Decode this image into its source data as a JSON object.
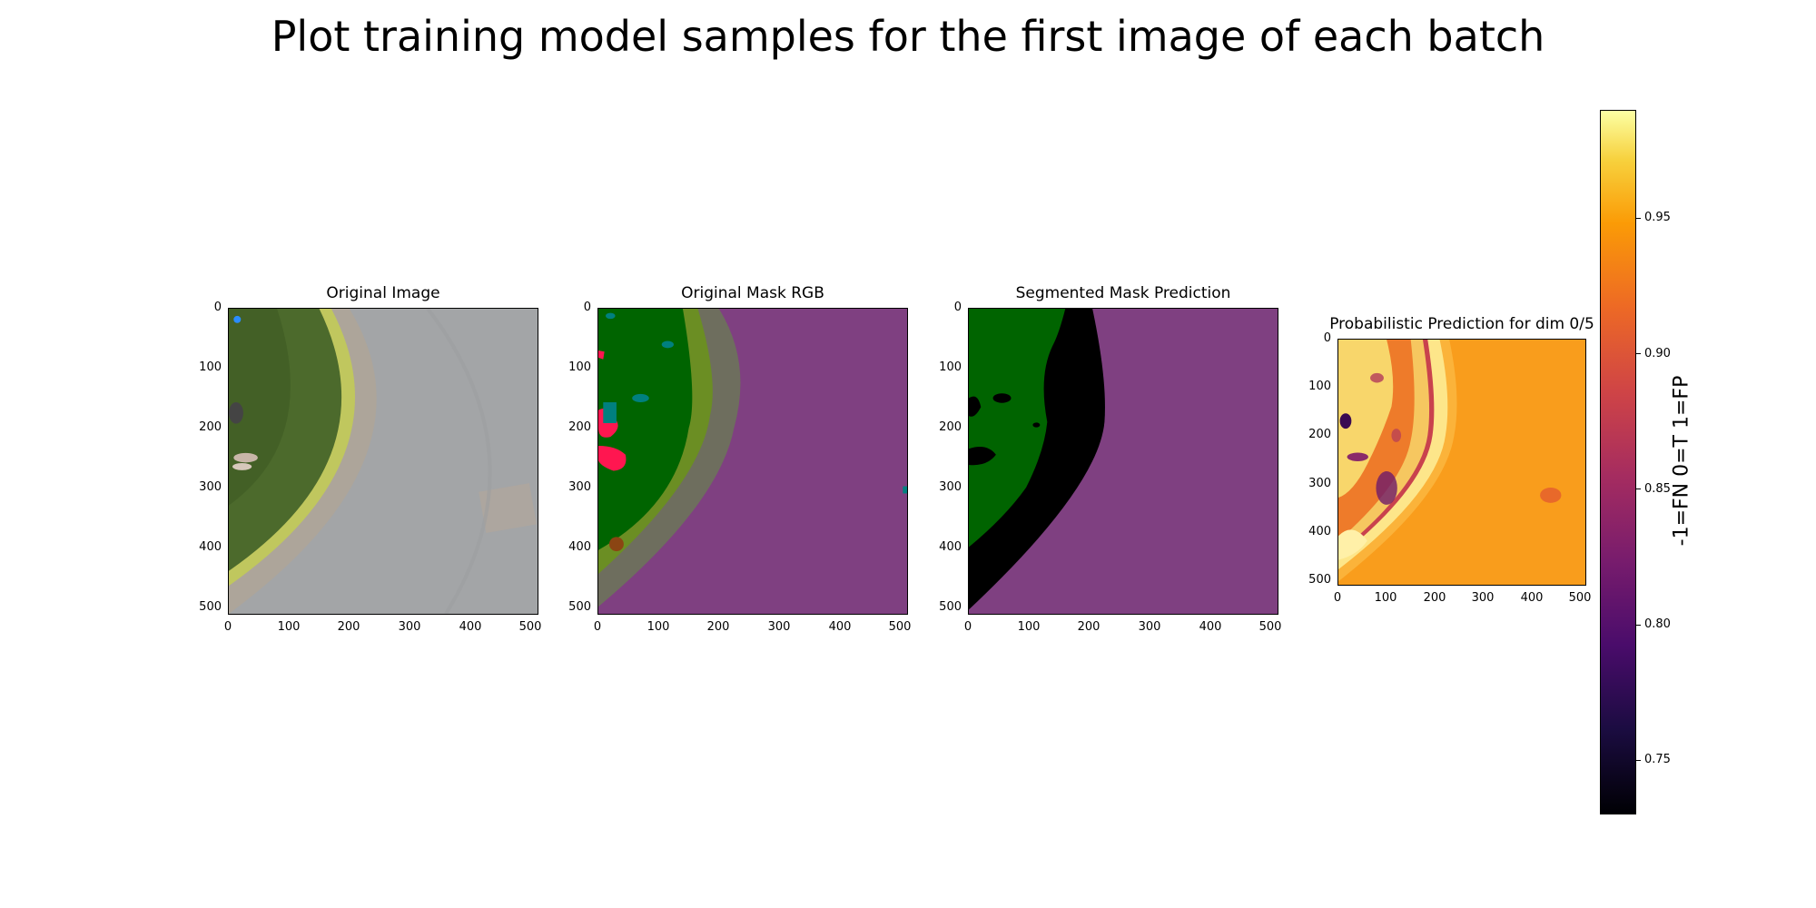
{
  "figure": {
    "suptitle": "Plot training model samples for the first image of each batch"
  },
  "panels": [
    {
      "title": "Original Image",
      "xticks": [
        "0",
        "100",
        "200",
        "300",
        "400",
        "500"
      ],
      "yticks": [
        "0",
        "100",
        "200",
        "300",
        "400",
        "500"
      ],
      "content": "aerial photo: grass with people, hedge, gravel border, paved road"
    },
    {
      "title": "Original Mask RGB",
      "xticks": [
        "0",
        "100",
        "200",
        "300",
        "400",
        "500"
      ],
      "yticks": [
        "0",
        "100",
        "200",
        "300",
        "400",
        "500"
      ],
      "colors": {
        "road": "#7f4081",
        "gravel": "#6e6e5e",
        "hedge": "#6b8e23",
        "grass": "#006400",
        "person": "#ff1650",
        "object": "#00807f"
      }
    },
    {
      "title": "Segmented Mask Prediction",
      "xticks": [
        "0",
        "100",
        "200",
        "300",
        "400",
        "500"
      ],
      "yticks": [
        "0",
        "100",
        "200",
        "300",
        "400",
        "500"
      ],
      "colors": {
        "road": "#7f4081",
        "unclassified": "#000000",
        "grass": "#006400"
      }
    },
    {
      "title": "Probabilistic Prediction for dim 0/5",
      "xticks": [
        "0",
        "100",
        "200",
        "300",
        "400",
        "500"
      ],
      "yticks": [
        "0",
        "100",
        "200",
        "300",
        "400",
        "500"
      ],
      "colormap": "inferno"
    }
  ],
  "colorbar": {
    "label": "-1=FN 0=T 1=FP",
    "ticks": [
      "0.75",
      "0.80",
      "0.85",
      "0.90",
      "0.95"
    ],
    "tick_values": [
      0.75,
      0.8,
      0.85,
      0.9,
      0.95
    ],
    "range": [
      0.73,
      0.99
    ]
  }
}
